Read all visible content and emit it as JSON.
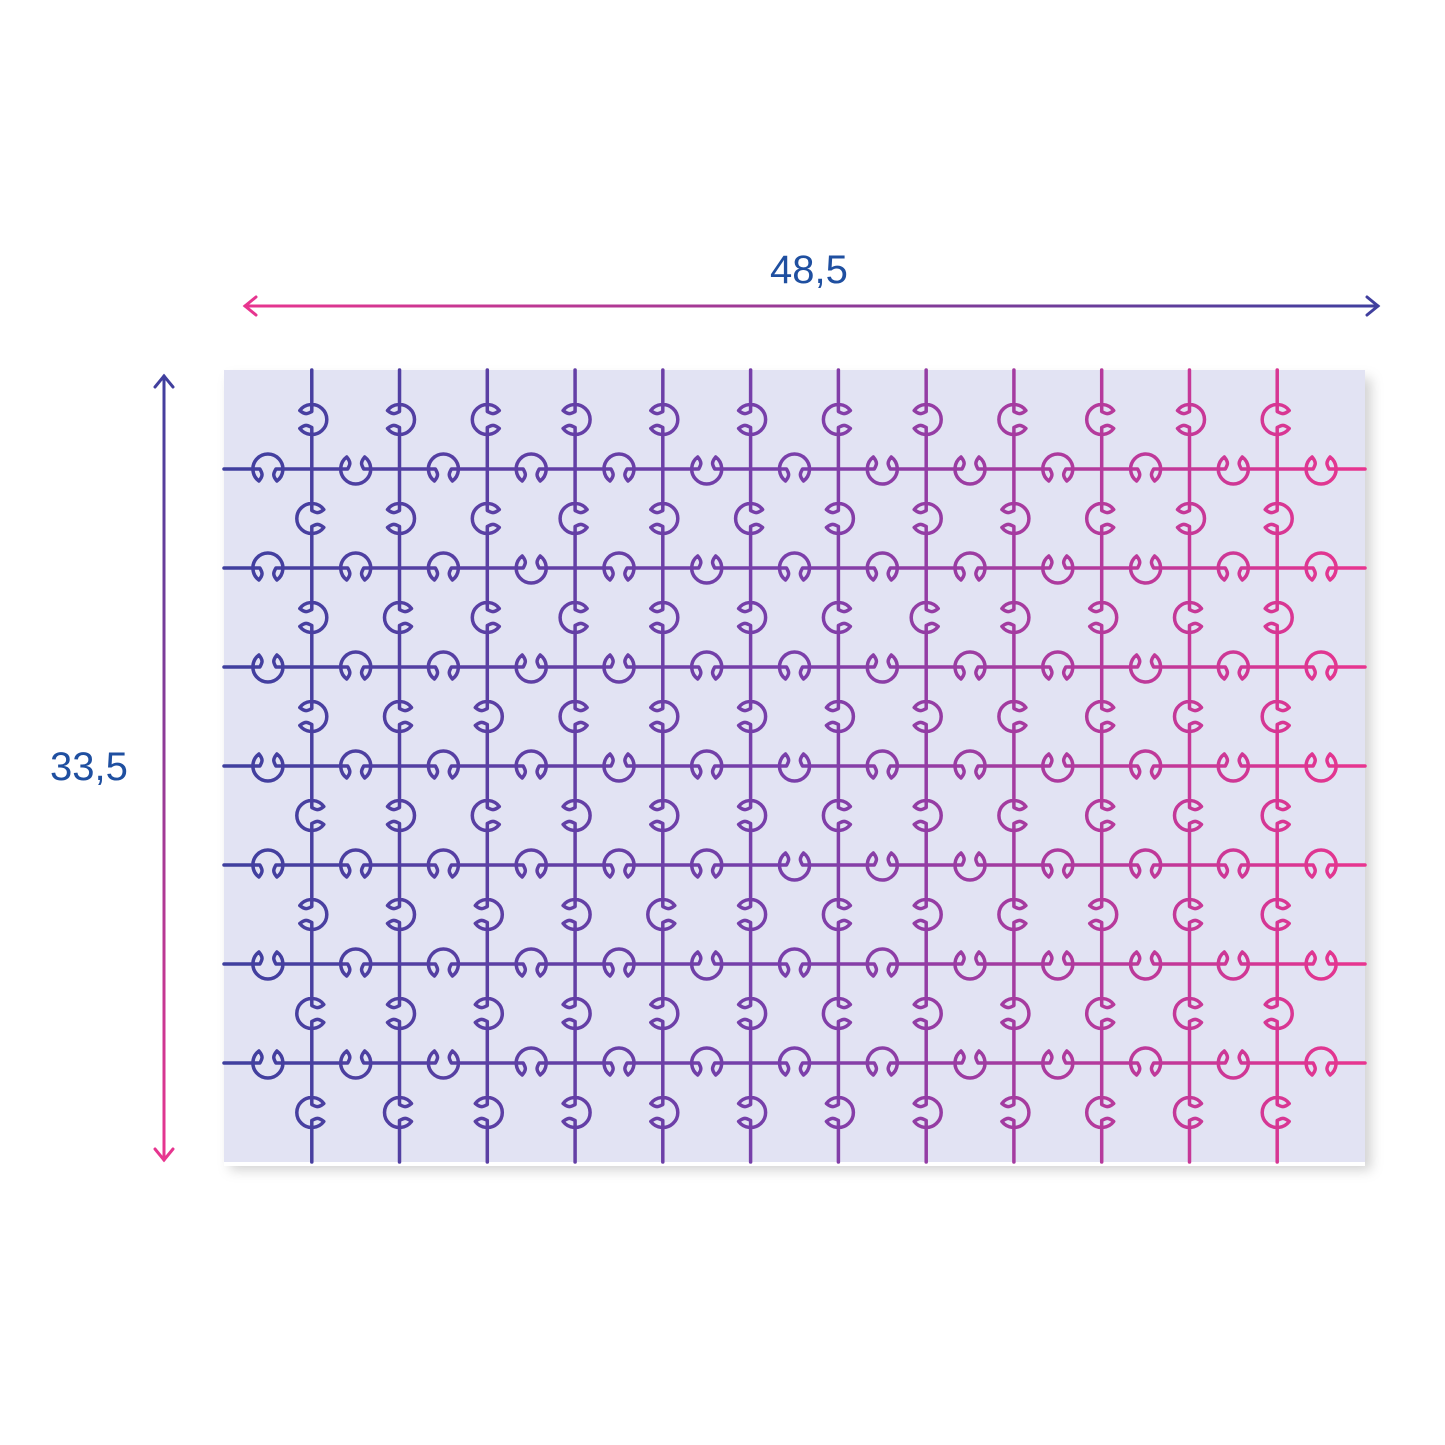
{
  "dimensions": {
    "width_label": "48,5",
    "height_label": "33,5"
  },
  "puzzle": {
    "columns": 13,
    "rows": 8
  },
  "colors": {
    "board": "#e2e3f3",
    "line_start": "#3f3f9e",
    "line_end": "#e8358f",
    "text": "#1f4fa0"
  }
}
